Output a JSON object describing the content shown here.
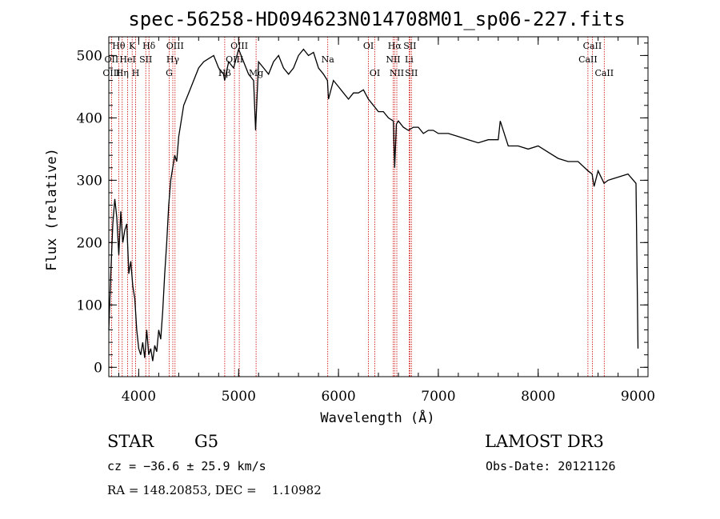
{
  "chart_data": {
    "type": "line",
    "title": "spec-56258-HD094623N014708M01_sp06-227.fits",
    "xlabel": "Wavelength (Å)",
    "ylabel": "Flux (relative)",
    "xlim": [
      3700,
      9100
    ],
    "ylim": [
      -15,
      530
    ],
    "xticks": [
      4000,
      5000,
      6000,
      7000,
      8000,
      9000
    ],
    "yticks": [
      0,
      100,
      200,
      300,
      400,
      500
    ],
    "grid": false,
    "series": [
      {
        "x": [
          3700,
          3720,
          3740,
          3760,
          3780,
          3800,
          3820,
          3840,
          3860,
          3880,
          3900,
          3920,
          3940,
          3960,
          3980,
          4000,
          4020,
          4040,
          4060,
          4080,
          4100,
          4120,
          4140,
          4160,
          4180,
          4200,
          4220,
          4240,
          4260,
          4280,
          4300,
          4320,
          4340,
          4360,
          4380,
          4400,
          4450,
          4500,
          4550,
          4600,
          4650,
          4700,
          4750,
          4800,
          4850,
          4860,
          4900,
          4950,
          5000,
          5050,
          5100,
          5150,
          5170,
          5200,
          5250,
          5300,
          5350,
          5400,
          5450,
          5500,
          5550,
          5600,
          5650,
          5700,
          5750,
          5800,
          5850,
          5890,
          5900,
          5950,
          6000,
          6050,
          6100,
          6150,
          6200,
          6250,
          6300,
          6350,
          6400,
          6450,
          6500,
          6550,
          6563,
          6580,
          6600,
          6650,
          6700,
          6750,
          6800,
          6850,
          6900,
          6950,
          7000,
          7100,
          7200,
          7300,
          7400,
          7500,
          7600,
          7620,
          7700,
          7800,
          7900,
          8000,
          8100,
          8200,
          8300,
          8400,
          8500,
          8540,
          8560,
          8600,
          8660,
          8700,
          8800,
          8900,
          8980,
          9000
        ],
        "y": [
          60,
          150,
          230,
          270,
          240,
          180,
          250,
          200,
          220,
          230,
          150,
          170,
          130,
          110,
          60,
          30,
          20,
          40,
          15,
          60,
          20,
          30,
          10,
          35,
          25,
          60,
          45,
          90,
          150,
          200,
          260,
          300,
          320,
          340,
          330,
          370,
          420,
          440,
          460,
          480,
          490,
          495,
          500,
          480,
          470,
          460,
          490,
          480,
          510,
          490,
          470,
          460,
          380,
          490,
          480,
          470,
          490,
          500,
          480,
          470,
          480,
          500,
          510,
          500,
          505,
          480,
          470,
          460,
          430,
          460,
          450,
          440,
          430,
          440,
          440,
          445,
          430,
          420,
          410,
          410,
          400,
          395,
          320,
          390,
          395,
          385,
          380,
          385,
          385,
          375,
          380,
          380,
          375,
          375,
          370,
          365,
          360,
          365,
          365,
          395,
          355,
          355,
          350,
          355,
          345,
          335,
          330,
          330,
          315,
          310,
          290,
          315,
          295,
          300,
          305,
          310,
          295,
          30
        ]
      }
    ],
    "line_labels": [
      {
        "text": "Hθ",
        "x": 3799,
        "row": 0
      },
      {
        "text": "OII",
        "x": 3727,
        "row": 1
      },
      {
        "text": "OIII",
        "x": 3727,
        "row": 2
      },
      {
        "text": "K",
        "x": 3934,
        "row": 0
      },
      {
        "text": "HeI",
        "x": 3889,
        "row": 1
      },
      {
        "text": "Hη",
        "x": 3835,
        "row": 2
      },
      {
        "text": "Hδ",
        "x": 4102,
        "row": 0
      },
      {
        "text": "SII",
        "x": 4070,
        "row": 1
      },
      {
        "text": "H",
        "x": 3969,
        "row": 2
      },
      {
        "text": "OIII",
        "x": 4363,
        "row": 0
      },
      {
        "text": "Hγ",
        "x": 4341,
        "row": 1
      },
      {
        "text": "G",
        "x": 4305,
        "row": 2
      },
      {
        "text": "OIII",
        "x": 5007,
        "row": 0
      },
      {
        "text": "OIII",
        "x": 4959,
        "row": 1
      },
      {
        "text": "Hβ",
        "x": 4861,
        "row": 2
      },
      {
        "text": "Mg",
        "x": 5175,
        "row": 2
      },
      {
        "text": "Na",
        "x": 5893,
        "row": 1
      },
      {
        "text": "OI",
        "x": 6300,
        "row": 0
      },
      {
        "text": "OI",
        "x": 6364,
        "row": 2
      },
      {
        "text": "Hα",
        "x": 6563,
        "row": 0
      },
      {
        "text": "NII",
        "x": 6548,
        "row": 1
      },
      {
        "text": "NII",
        "x": 6584,
        "row": 2
      },
      {
        "text": "SII",
        "x": 6716,
        "row": 0
      },
      {
        "text": "Li",
        "x": 6708,
        "row": 1
      },
      {
        "text": "SII",
        "x": 6731,
        "row": 2
      },
      {
        "text": "CaII",
        "x": 8542,
        "row": 0
      },
      {
        "text": "CaII",
        "x": 8498,
        "row": 1
      },
      {
        "text": "CaII",
        "x": 8662,
        "row": 2
      }
    ],
    "marker_lines": [
      3727,
      3799,
      3835,
      3889,
      3934,
      3969,
      4070,
      4102,
      4305,
      4341,
      4363,
      4861,
      4959,
      5007,
      5175,
      5893,
      6300,
      6364,
      6548,
      6563,
      6584,
      6708,
      6716,
      6731,
      8498,
      8542,
      8662
    ],
    "colors": {
      "spectrum": "#000000",
      "markers": "#cc0000",
      "axes": "#000000"
    }
  },
  "footer": {
    "star_class": "STAR",
    "subclass": "G5",
    "survey": "LAMOST DR3",
    "cz": "cz = −36.6 ± 25.9 km/s",
    "obs_date": "Obs-Date: 20121126",
    "coords": "RA = 148.20853, DEC =    1.10982"
  }
}
